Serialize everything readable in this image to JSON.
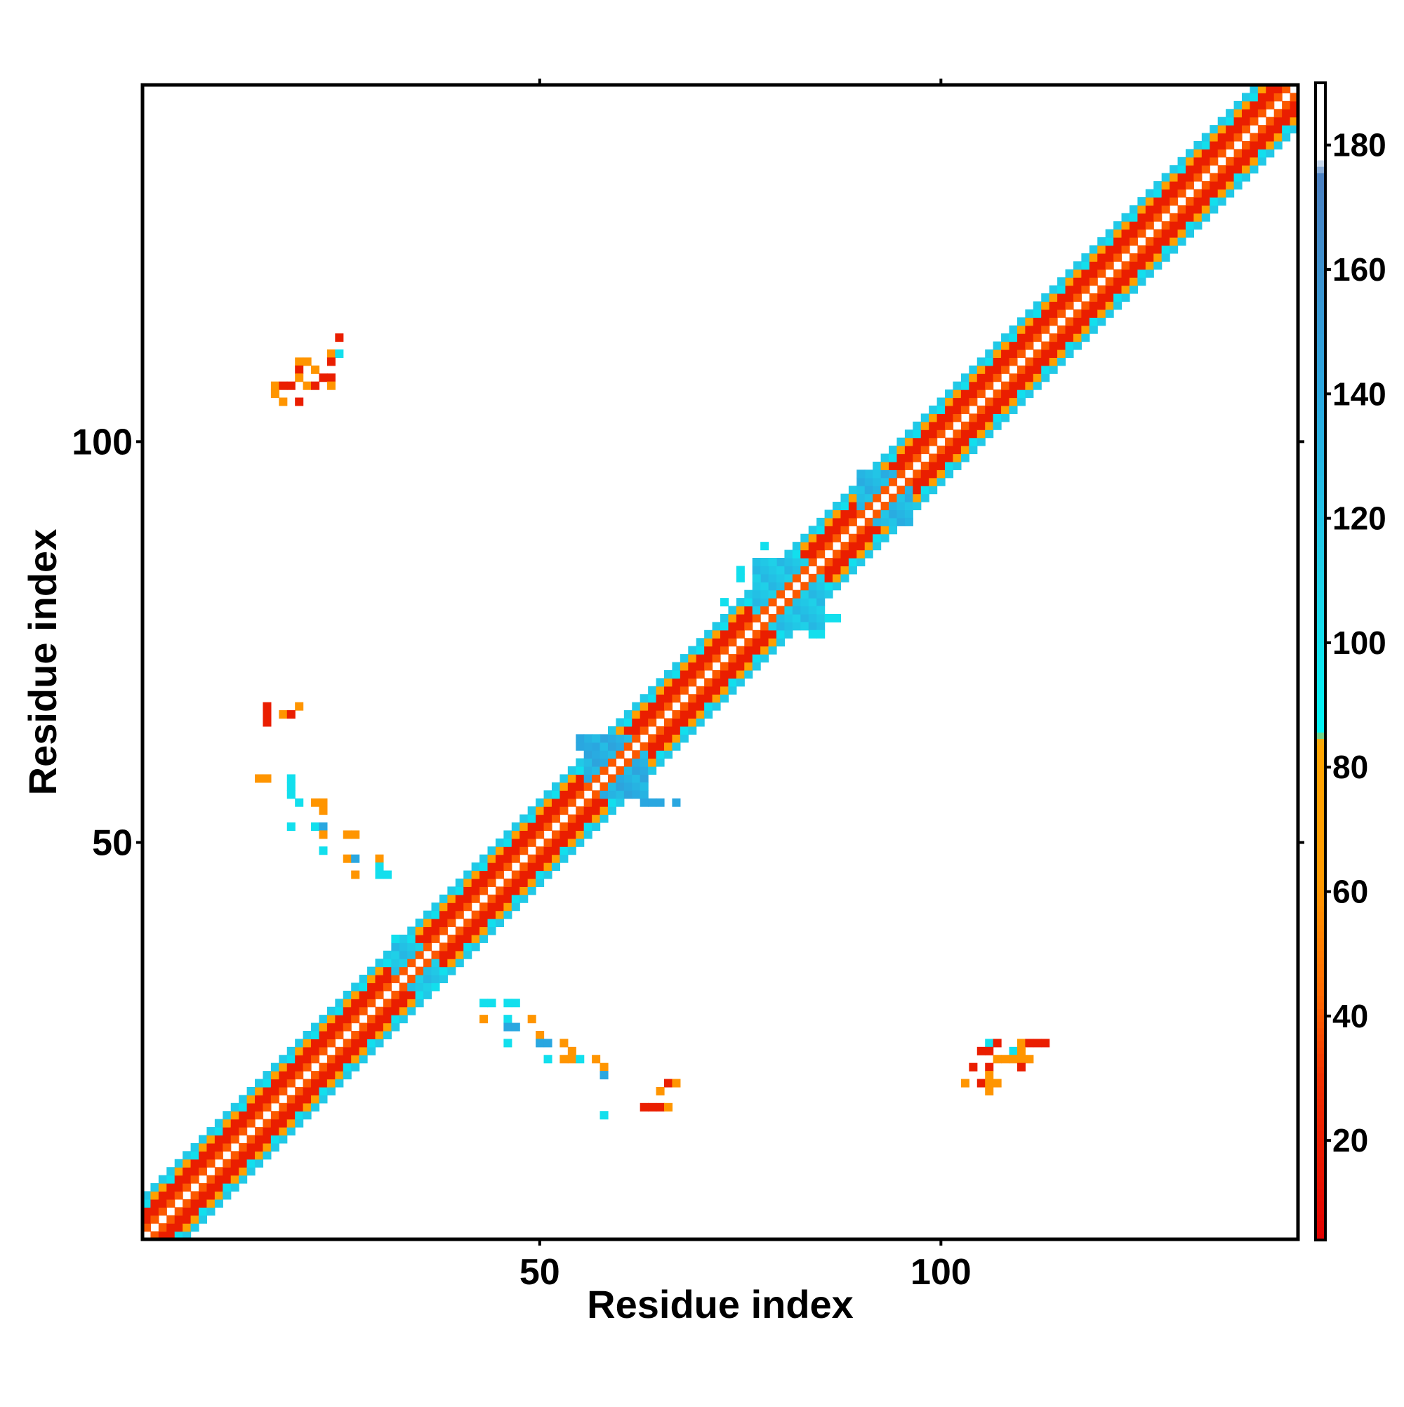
{
  "chart_data": {
    "type": "heatmap",
    "title": "",
    "xlabel": "Residue index",
    "ylabel": "Residue index",
    "xlim": [
      1,
      144
    ],
    "ylim": [
      1,
      144
    ],
    "xticks": [
      50,
      100
    ],
    "yticks": [
      50,
      100
    ],
    "colorbar": {
      "range": [
        4,
        190
      ],
      "ticks": [
        20,
        40,
        60,
        80,
        100,
        120,
        140,
        160,
        180
      ],
      "color_stops": [
        {
          "value": 4,
          "color": "#e10000"
        },
        {
          "value": 30,
          "color": "#f03000"
        },
        {
          "value": 44,
          "color": "#ff6a00"
        },
        {
          "value": 62,
          "color": "#ff9a00"
        },
        {
          "value": 84,
          "color": "#ffa500"
        },
        {
          "value": 86,
          "color": "#00f4f4"
        },
        {
          "value": 110,
          "color": "#1fd0e8"
        },
        {
          "value": 140,
          "color": "#2aa7e0"
        },
        {
          "value": 175,
          "color": "#4a7fc0"
        },
        {
          "value": 178,
          "color": "#ffffff"
        },
        {
          "value": 190,
          "color": "#ffffff"
        }
      ]
    },
    "diagonal_band": {
      "half_width": 5,
      "from": 1,
      "to": 144
    },
    "off_diagonal_contacts": [
      {
        "i": 25,
        "j": 113,
        "v": 20
      },
      {
        "i": 24,
        "j": 111,
        "v": 60
      },
      {
        "i": 25,
        "j": 111,
        "v": 100
      },
      {
        "i": 20,
        "j": 110,
        "v": 60
      },
      {
        "i": 21,
        "j": 110,
        "v": 60
      },
      {
        "i": 24,
        "j": 110,
        "v": 20
      },
      {
        "i": 20,
        "j": 109,
        "v": 20
      },
      {
        "i": 22,
        "j": 109,
        "v": 60
      },
      {
        "i": 20,
        "j": 108,
        "v": 60
      },
      {
        "i": 23,
        "j": 108,
        "v": 20
      },
      {
        "i": 24,
        "j": 108,
        "v": 20
      },
      {
        "i": 17,
        "j": 107,
        "v": 60
      },
      {
        "i": 18,
        "j": 107,
        "v": 20
      },
      {
        "i": 19,
        "j": 107,
        "v": 20
      },
      {
        "i": 21,
        "j": 107,
        "v": 60
      },
      {
        "i": 22,
        "j": 107,
        "v": 20
      },
      {
        "i": 24,
        "j": 107,
        "v": 60
      },
      {
        "i": 17,
        "j": 106,
        "v": 60
      },
      {
        "i": 20,
        "j": 105,
        "v": 20
      },
      {
        "i": 18,
        "j": 105,
        "v": 60
      },
      {
        "i": 16,
        "j": 67,
        "v": 20
      },
      {
        "i": 20,
        "j": 67,
        "v": 60
      },
      {
        "i": 16,
        "j": 66,
        "v": 20
      },
      {
        "i": 18,
        "j": 66,
        "v": 60
      },
      {
        "i": 19,
        "j": 66,
        "v": 20
      },
      {
        "i": 16,
        "j": 65,
        "v": 20
      },
      {
        "i": 15,
        "j": 58,
        "v": 60
      },
      {
        "i": 16,
        "j": 58,
        "v": 60
      },
      {
        "i": 19,
        "j": 58,
        "v": 100
      },
      {
        "i": 19,
        "j": 57,
        "v": 100
      },
      {
        "i": 19,
        "j": 56,
        "v": 100
      },
      {
        "i": 20,
        "j": 55,
        "v": 100
      },
      {
        "i": 22,
        "j": 55,
        "v": 60
      },
      {
        "i": 23,
        "j": 55,
        "v": 60
      },
      {
        "i": 23,
        "j": 54,
        "v": 60
      },
      {
        "i": 19,
        "j": 52,
        "v": 100
      },
      {
        "i": 22,
        "j": 52,
        "v": 100
      },
      {
        "i": 23,
        "j": 52,
        "v": 140
      },
      {
        "i": 23,
        "j": 51,
        "v": 60
      },
      {
        "i": 26,
        "j": 51,
        "v": 60
      },
      {
        "i": 27,
        "j": 51,
        "v": 60
      },
      {
        "i": 23,
        "j": 49,
        "v": 100
      },
      {
        "i": 26,
        "j": 48,
        "v": 60
      },
      {
        "i": 27,
        "j": 48,
        "v": 140
      },
      {
        "i": 30,
        "j": 48,
        "v": 60
      },
      {
        "i": 30,
        "j": 47,
        "v": 100
      },
      {
        "i": 27,
        "j": 46,
        "v": 60
      },
      {
        "i": 30,
        "j": 46,
        "v": 100
      },
      {
        "i": 31,
        "j": 46,
        "v": 100
      },
      {
        "i": 106,
        "j": 25,
        "v": 100
      },
      {
        "i": 107,
        "j": 25,
        "v": 20
      },
      {
        "i": 110,
        "j": 25,
        "v": 60
      },
      {
        "i": 111,
        "j": 25,
        "v": 20
      },
      {
        "i": 112,
        "j": 25,
        "v": 20
      },
      {
        "i": 113,
        "j": 25,
        "v": 20
      },
      {
        "i": 105,
        "j": 24,
        "v": 20
      },
      {
        "i": 106,
        "j": 24,
        "v": 20
      },
      {
        "i": 109,
        "j": 24,
        "v": 100
      },
      {
        "i": 110,
        "j": 24,
        "v": 60
      },
      {
        "i": 107,
        "j": 23,
        "v": 60
      },
      {
        "i": 108,
        "j": 23,
        "v": 60
      },
      {
        "i": 109,
        "j": 23,
        "v": 60
      },
      {
        "i": 110,
        "j": 23,
        "v": 60
      },
      {
        "i": 111,
        "j": 23,
        "v": 60
      },
      {
        "i": 104,
        "j": 22,
        "v": 20
      },
      {
        "i": 106,
        "j": 22,
        "v": 20
      },
      {
        "i": 110,
        "j": 22,
        "v": 20
      },
      {
        "i": 106,
        "j": 21,
        "v": 60
      },
      {
        "i": 103,
        "j": 20,
        "v": 60
      },
      {
        "i": 105,
        "j": 20,
        "v": 20
      },
      {
        "i": 106,
        "j": 20,
        "v": 60
      },
      {
        "i": 107,
        "j": 20,
        "v": 60
      },
      {
        "i": 106,
        "j": 19,
        "v": 60
      },
      {
        "i": 66,
        "j": 20,
        "v": 20
      },
      {
        "i": 67,
        "j": 20,
        "v": 60
      },
      {
        "i": 65,
        "j": 19,
        "v": 60
      },
      {
        "i": 63,
        "j": 17,
        "v": 20
      },
      {
        "i": 64,
        "j": 17,
        "v": 20
      },
      {
        "i": 65,
        "j": 17,
        "v": 20
      },
      {
        "i": 66,
        "j": 17,
        "v": 60
      },
      {
        "i": 58,
        "j": 16,
        "v": 100
      },
      {
        "i": 43,
        "j": 30,
        "v": 100
      },
      {
        "i": 44,
        "j": 30,
        "v": 100
      },
      {
        "i": 46,
        "j": 30,
        "v": 100
      },
      {
        "i": 47,
        "j": 30,
        "v": 100
      },
      {
        "i": 43,
        "j": 28,
        "v": 60
      },
      {
        "i": 46,
        "j": 28,
        "v": 100
      },
      {
        "i": 49,
        "j": 28,
        "v": 60
      },
      {
        "i": 46,
        "j": 27,
        "v": 140
      },
      {
        "i": 47,
        "j": 27,
        "v": 140
      },
      {
        "i": 50,
        "j": 26,
        "v": 60
      },
      {
        "i": 46,
        "j": 25,
        "v": 100
      },
      {
        "i": 50,
        "j": 25,
        "v": 140
      },
      {
        "i": 51,
        "j": 25,
        "v": 140
      },
      {
        "i": 53,
        "j": 25,
        "v": 60
      },
      {
        "i": 54,
        "j": 24,
        "v": 60
      },
      {
        "i": 51,
        "j": 23,
        "v": 100
      },
      {
        "i": 53,
        "j": 23,
        "v": 60
      },
      {
        "i": 54,
        "j": 23,
        "v": 60
      },
      {
        "i": 55,
        "j": 23,
        "v": 100
      },
      {
        "i": 57,
        "j": 23,
        "v": 60
      },
      {
        "i": 58,
        "j": 22,
        "v": 60
      },
      {
        "i": 58,
        "j": 21,
        "v": 140
      },
      {
        "i": 55,
        "j": 63,
        "v": 140
      },
      {
        "i": 55,
        "j": 62,
        "v": 140
      },
      {
        "i": 57,
        "j": 62,
        "v": 140
      },
      {
        "i": 63,
        "j": 55,
        "v": 140
      },
      {
        "i": 64,
        "j": 55,
        "v": 140
      },
      {
        "i": 65,
        "j": 55,
        "v": 140
      },
      {
        "i": 67,
        "j": 55,
        "v": 140
      },
      {
        "i": 78,
        "j": 87,
        "v": 100
      },
      {
        "i": 75,
        "j": 84,
        "v": 100
      },
      {
        "i": 75,
        "j": 83,
        "v": 100
      },
      {
        "i": 73,
        "j": 80,
        "v": 100
      },
      {
        "i": 87,
        "j": 78,
        "v": 100
      },
      {
        "i": 84,
        "j": 76,
        "v": 100
      },
      {
        "i": 85,
        "j": 76,
        "v": 100
      },
      {
        "i": 86,
        "j": 78,
        "v": 100
      },
      {
        "i": 32,
        "j": 38,
        "v": 100
      },
      {
        "i": 37,
        "j": 32,
        "v": 100
      }
    ],
    "special_regions": [
      {
        "i0": 32,
        "i1": 37,
        "j0": 32,
        "j1": 37,
        "v": 110
      },
      {
        "i0": 56,
        "i1": 63,
        "j0": 56,
        "j1": 63,
        "v": 125
      },
      {
        "i0": 77,
        "i1": 85,
        "j0": 77,
        "j1": 85,
        "v": 110
      },
      {
        "i0": 90,
        "i1": 96,
        "j0": 90,
        "j1": 96,
        "v": 118
      }
    ]
  }
}
